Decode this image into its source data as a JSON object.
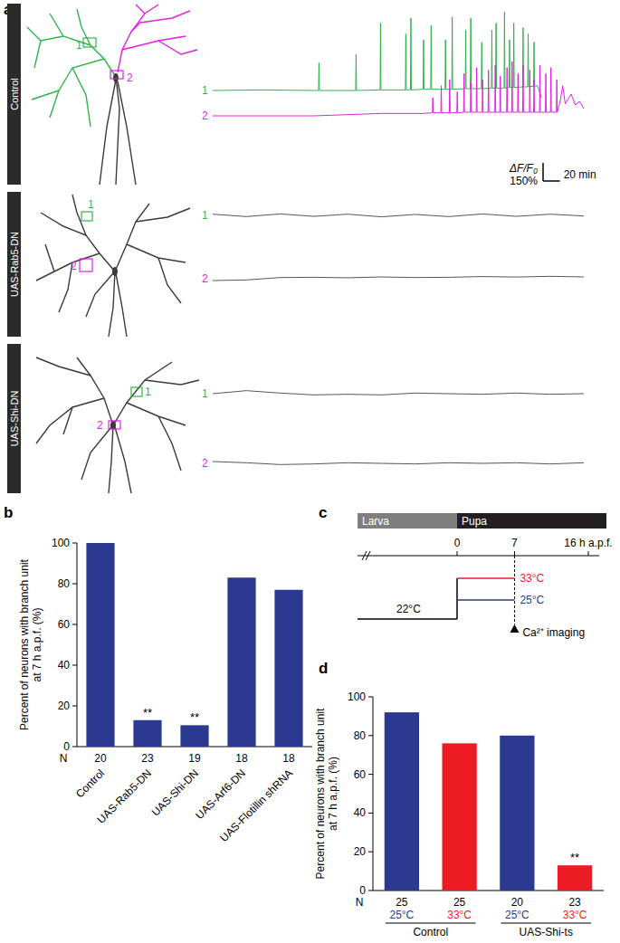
{
  "panel_labels": [
    "a",
    "b",
    "c",
    "d"
  ],
  "chart_data": [
    {
      "type": "line",
      "title": "Control",
      "xlim": [
        0,
        440
      ],
      "ylim": [
        -100,
        700
      ],
      "tick_labels": false,
      "colors": [
        "#2fb34a",
        "#e021e0"
      ],
      "series": [
        {
          "name": "1",
          "color": "#2fb34a",
          "x": [
            0,
            60,
            120,
            125.5,
            126,
            126.5,
            169.5,
            170,
            170.5,
            198.5,
            199,
            199.5,
            228.5,
            229,
            229.5,
            234.5,
            235,
            235.5,
            249.5,
            250,
            250.5,
            258.5,
            259,
            259.5,
            275.5,
            276,
            276.5,
            283.5,
            284,
            284.5,
            299.5,
            300,
            300.5,
            305.5,
            306,
            306.5,
            318.5,
            319,
            319.5,
            330.5,
            331,
            331.5,
            335.5,
            336,
            336.5,
            345.5,
            346,
            346.5,
            351.5,
            352,
            352.5,
            356.5,
            357,
            357.5,
            367.5,
            368,
            368.5,
            373.5,
            374,
            374.5,
            380.5,
            381,
            381.5,
            385,
            390
          ],
          "values": [
            0,
            5,
            0,
            0,
            230,
            0,
            0,
            300,
            0,
            5,
            560,
            5,
            5,
            470,
            5,
            5,
            600,
            5,
            10,
            420,
            10,
            10,
            540,
            10,
            10,
            420,
            10,
            10,
            610,
            10,
            15,
            500,
            15,
            15,
            600,
            15,
            15,
            400,
            15,
            20,
            500,
            20,
            20,
            560,
            20,
            20,
            650,
            20,
            25,
            420,
            25,
            25,
            560,
            25,
            30,
            520,
            30,
            30,
            470,
            30,
            35,
            400,
            35,
            40,
            -60
          ]
        },
        {
          "name": "2",
          "color": "#e021e0",
          "x": [
            0,
            120,
            200,
            250,
            260.5,
            261,
            261.5,
            270.5,
            271,
            271.5,
            280.5,
            281,
            281.5,
            289.5,
            290,
            290.5,
            297.5,
            298,
            298.5,
            305.5,
            306,
            306.5,
            312.5,
            313,
            313.5,
            319.5,
            320,
            320.5,
            326.5,
            327,
            327.5,
            334.5,
            335,
            335.5,
            340.5,
            341,
            341.5,
            348.5,
            349,
            349.5,
            354.5,
            355,
            355.5,
            361.5,
            362,
            362.5,
            367.5,
            368,
            368.5,
            375.5,
            376,
            376.5,
            380.5,
            381,
            381.5,
            387.5,
            388,
            388.5,
            394.5,
            395,
            395.5,
            400.5,
            401,
            401.5,
            407.5,
            408,
            408.5,
            412,
            415,
            418,
            425,
            430,
            435,
            440
          ],
          "values": [
            0,
            0,
            20,
            20,
            25,
            150,
            25,
            25,
            250,
            25,
            25,
            300,
            25,
            25,
            200,
            25,
            30,
            350,
            30,
            30,
            280,
            30,
            30,
            400,
            30,
            30,
            300,
            30,
            30,
            380,
            30,
            30,
            420,
            30,
            30,
            330,
            30,
            30,
            400,
            30,
            30,
            450,
            30,
            30,
            350,
            30,
            30,
            420,
            30,
            30,
            380,
            30,
            30,
            300,
            30,
            30,
            420,
            30,
            30,
            350,
            30,
            30,
            400,
            30,
            30,
            300,
            30,
            120,
            250,
            100,
            180,
            90,
            120,
            60
          ]
        }
      ],
      "scale_bar": {
        "y_title": "ΔF/F₀",
        "y_value": 150,
        "y_label": "150%",
        "x_value": 20,
        "x_label": "20 min"
      }
    },
    {
      "type": "line",
      "title": "UAS-Rab5-DN",
      "xlim": [
        0,
        440
      ],
      "ylim": [
        -100,
        700
      ],
      "tick_labels": false,
      "colors": [
        "#2fb34a",
        "#e021e0"
      ],
      "series": [
        {
          "name": "1",
          "color": "#555555",
          "x": [
            0,
            40,
            80,
            120,
            160,
            200,
            240,
            280,
            320,
            360,
            400,
            440
          ],
          "values": [
            10,
            -10,
            12,
            -8,
            10,
            -12,
            8,
            -10,
            12,
            -8,
            10,
            -5
          ]
        },
        {
          "name": "2",
          "color": "#555555",
          "x": [
            0,
            40,
            80,
            120,
            160,
            200,
            240,
            280,
            320,
            360,
            400,
            440
          ],
          "values": [
            -15,
            -10,
            10,
            12,
            8,
            15,
            10,
            12,
            18,
            14,
            20,
            15
          ]
        }
      ]
    },
    {
      "type": "line",
      "title": "UAS-Shi-DN",
      "xlim": [
        0,
        440
      ],
      "ylim": [
        -100,
        700
      ],
      "tick_labels": false,
      "colors": [
        "#2fb34a",
        "#e021e0"
      ],
      "series": [
        {
          "name": "1",
          "color": "#555555",
          "x": [
            0,
            40,
            80,
            120,
            160,
            200,
            240,
            280,
            320,
            360,
            400,
            440
          ],
          "values": [
            0,
            25,
            5,
            -10,
            -5,
            -10,
            5,
            0,
            -5,
            5,
            -5,
            0
          ]
        },
        {
          "name": "2",
          "color": "#555555",
          "x": [
            0,
            40,
            80,
            120,
            160,
            200,
            240,
            280,
            320,
            360,
            400,
            440
          ],
          "values": [
            15,
            5,
            -10,
            -5,
            5,
            0,
            -5,
            5,
            0,
            5,
            -5,
            5
          ]
        }
      ]
    },
    {
      "type": "bar",
      "categories": [
        "Control",
        "UAS-Rab5-DN",
        "UAS-Shi-DN",
        "UAS-Arf6-DN",
        "UAS-Flotillin shRNA"
      ],
      "values": [
        100,
        13,
        10.5,
        83,
        77
      ],
      "color": "#2b3990",
      "ylim": [
        0,
        100
      ],
      "yticks": [
        0,
        20,
        40,
        60,
        80,
        100
      ],
      "y_label": [
        "Percent of neurons with branch unit",
        "at 7 h a.p.f. (%)"
      ],
      "n_label": "N",
      "n": [
        20,
        23,
        19,
        18,
        18
      ],
      "significance": [
        null,
        "**",
        "**",
        null,
        null
      ]
    },
    {
      "type": "bar",
      "categories": [
        "25°C",
        "33°C",
        "25°C",
        "33°C"
      ],
      "values": [
        92,
        76,
        80,
        13
      ],
      "colors": [
        "#2b3990",
        "#ed1c24",
        "#2b3990",
        "#ed1c24"
      ],
      "ylim": [
        0,
        100
      ],
      "yticks": [
        0,
        20,
        40,
        60,
        80,
        100
      ],
      "y_label": [
        "Percent of neurons with branch unit",
        "at 7 h a.p.f. (%)"
      ],
      "n_label": "N",
      "n": [
        25,
        25,
        20,
        23
      ],
      "significance": [
        null,
        null,
        null,
        "**"
      ],
      "group_labels": [
        "Control",
        "UAS-Shi-ts"
      ],
      "group_of": [
        0,
        0,
        1,
        1
      ]
    }
  ],
  "panel_c": {
    "stages": [
      "Larva",
      "Pupa"
    ],
    "times": [
      {
        "value": 0,
        "label": "0"
      },
      {
        "value": 7,
        "label": "7"
      },
      {
        "value": 16,
        "label": "16 h a.p.f."
      }
    ],
    "temperatures": [
      {
        "label": "22°C",
        "color": "#000000"
      },
      {
        "label": "33°C",
        "color": "#ed1c24"
      },
      {
        "label": "25°C",
        "color": "#2b3990"
      }
    ],
    "event": "Ca²⁺ imaging",
    "event_time": 7
  }
}
